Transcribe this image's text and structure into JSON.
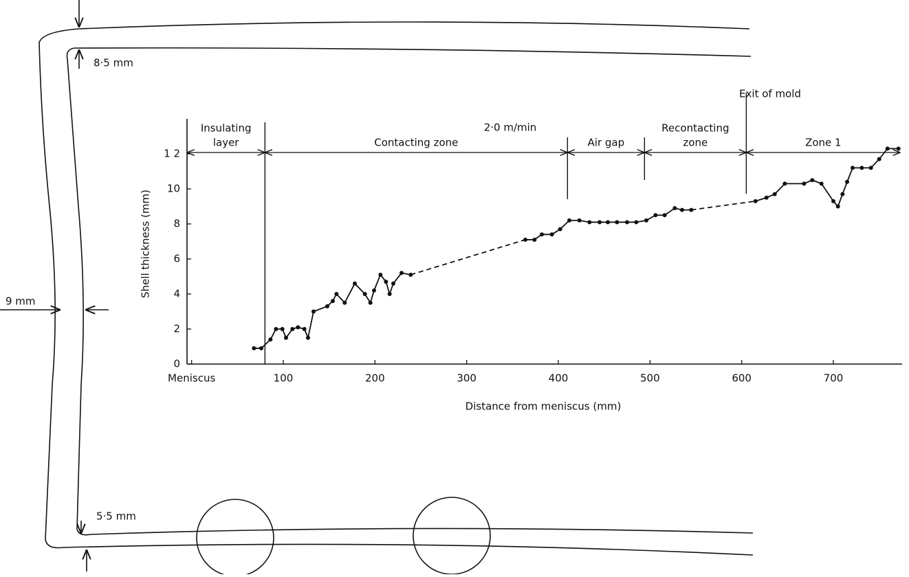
{
  "chart_data": {
    "type": "line",
    "title": "2·0 m/min",
    "x_label": "Distance from meniscus  (mm)",
    "y_label": "Shell thickness  (mm)",
    "xlim": [
      -5,
      775
    ],
    "ylim": [
      0,
      14
    ],
    "xticks": [
      {
        "value": 0,
        "label": "Meniscus"
      },
      100,
      200,
      300,
      400,
      500,
      600,
      700
    ],
    "yticks": [
      0,
      2,
      4,
      6,
      8,
      10,
      {
        "value": 12,
        "label": "1 2"
      }
    ],
    "color": "#111111",
    "series": [
      {
        "style": "solid",
        "markers": true,
        "x": [
          68,
          76,
          86,
          92,
          99,
          103,
          110,
          116,
          123,
          127,
          133,
          148,
          154,
          158,
          167,
          178,
          189,
          195,
          199,
          206,
          212,
          216,
          220,
          229,
          239
        ],
        "values": [
          0.9,
          0.9,
          1.4,
          2.0,
          2.0,
          1.5,
          2.0,
          2.1,
          2.0,
          1.5,
          3.0,
          3.3,
          3.6,
          4.0,
          3.5,
          4.6,
          4.0,
          3.5,
          4.2,
          5.1,
          4.7,
          4.0,
          4.6,
          5.2,
          5.1
        ]
      },
      {
        "style": "dashed",
        "markers": false,
        "x": [
          239,
          364
        ],
        "values": [
          5.1,
          7.1
        ]
      },
      {
        "style": "solid",
        "markers": true,
        "x": [
          364,
          374,
          382,
          393,
          402,
          412,
          423,
          434,
          445,
          454,
          464,
          475,
          485,
          496,
          506,
          516,
          527,
          535,
          545
        ],
        "values": [
          7.1,
          7.1,
          7.4,
          7.4,
          7.7,
          8.2,
          8.2,
          8.1,
          8.1,
          8.1,
          8.1,
          8.1,
          8.1,
          8.2,
          8.5,
          8.5,
          8.9,
          8.8,
          8.8
        ]
      },
      {
        "style": "dashed",
        "markers": false,
        "x": [
          545,
          615
        ],
        "values": [
          8.8,
          9.3
        ]
      },
      {
        "style": "solid",
        "markers": true,
        "x": [
          615,
          627,
          636,
          647,
          668,
          677,
          687,
          700,
          705,
          710,
          715,
          721,
          731,
          741,
          750,
          759,
          771
        ],
        "values": [
          9.3,
          9.5,
          9.7,
          10.3,
          10.3,
          10.5,
          10.3,
          9.3,
          9.0,
          9.7,
          10.4,
          11.2,
          11.2,
          11.2,
          11.7,
          12.3,
          12.3
        ]
      }
    ],
    "zones": [
      {
        "label": [
          "Insulating",
          "layer"
        ],
        "from": -5,
        "to": 80
      },
      {
        "label": [
          "Contacting zone"
        ],
        "from": 80,
        "to": 410
      },
      {
        "label": [
          "Air gap"
        ],
        "from": 410,
        "to": 494
      },
      {
        "label": [
          "Recontacting",
          "zone"
        ],
        "from": 494,
        "to": 605
      },
      {
        "label": [
          "Zone 1"
        ],
        "from": 605,
        "to": 773
      }
    ],
    "boundaries": [
      80,
      410,
      494,
      605
    ],
    "annotation": "Exit of mold"
  },
  "diagram": {
    "top_thickness": "8·5 mm",
    "side_thickness": "9 mm",
    "bottom_thickness": "5·5 mm"
  }
}
